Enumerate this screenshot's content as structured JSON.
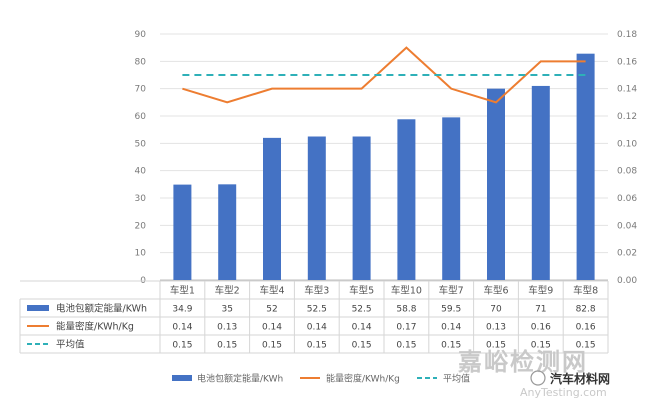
{
  "chart_data": {
    "type": "bar",
    "categories": [
      "车型1",
      "车型2",
      "车型4",
      "车型3",
      "车型5",
      "车型10",
      "车型7",
      "车型6",
      "车型9",
      "车型8"
    ],
    "series": [
      {
        "name": "电池包额定能量/KWh",
        "kind": "bar",
        "axis": "left",
        "color": "#4472c4",
        "values": [
          34.9,
          35,
          52,
          52.5,
          52.5,
          58.8,
          59.5,
          70,
          71,
          82.8
        ],
        "labels": [
          "34.9",
          "35",
          "52",
          "52.5",
          "52.5",
          "58.8",
          "59.5",
          "70",
          "71",
          "82.8"
        ]
      },
      {
        "name": "能量密度/KWh/Kg",
        "kind": "line",
        "axis": "right",
        "color": "#ed7d31",
        "values": [
          0.14,
          0.13,
          0.14,
          0.14,
          0.14,
          0.17,
          0.14,
          0.13,
          0.16,
          0.16
        ],
        "labels": [
          "0.14",
          "0.13",
          "0.14",
          "0.14",
          "0.14",
          "0.17",
          "0.14",
          "0.13",
          "0.16",
          "0.16"
        ]
      },
      {
        "name": "平均值",
        "kind": "dashed",
        "axis": "right",
        "color": "#2eb0b8",
        "values": [
          0.15,
          0.15,
          0.15,
          0.15,
          0.15,
          0.15,
          0.15,
          0.15,
          0.15,
          0.15
        ],
        "labels": [
          "0.15",
          "0.15",
          "0.15",
          "0.15",
          "0.15",
          "0.15",
          "0.15",
          "0.15",
          "0.15",
          "0.15"
        ]
      }
    ],
    "ylim": [
      0,
      90
    ],
    "yticks": [
      "0",
      "10",
      "20",
      "30",
      "40",
      "50",
      "60",
      "70",
      "80",
      "90"
    ],
    "y2lim": [
      0,
      0.18
    ],
    "y2ticks": [
      "0.00",
      "0.02",
      "0.04",
      "0.06",
      "0.08",
      "0.10",
      "0.12",
      "0.14",
      "0.16",
      "0.18"
    ],
    "grid": true,
    "legend": "bottom",
    "title": "",
    "xlabel": "",
    "ylabel": ""
  },
  "watermark": {
    "main": "嘉峪检测网",
    "url": "AnyTesting.com",
    "source": "汽车材料网"
  }
}
